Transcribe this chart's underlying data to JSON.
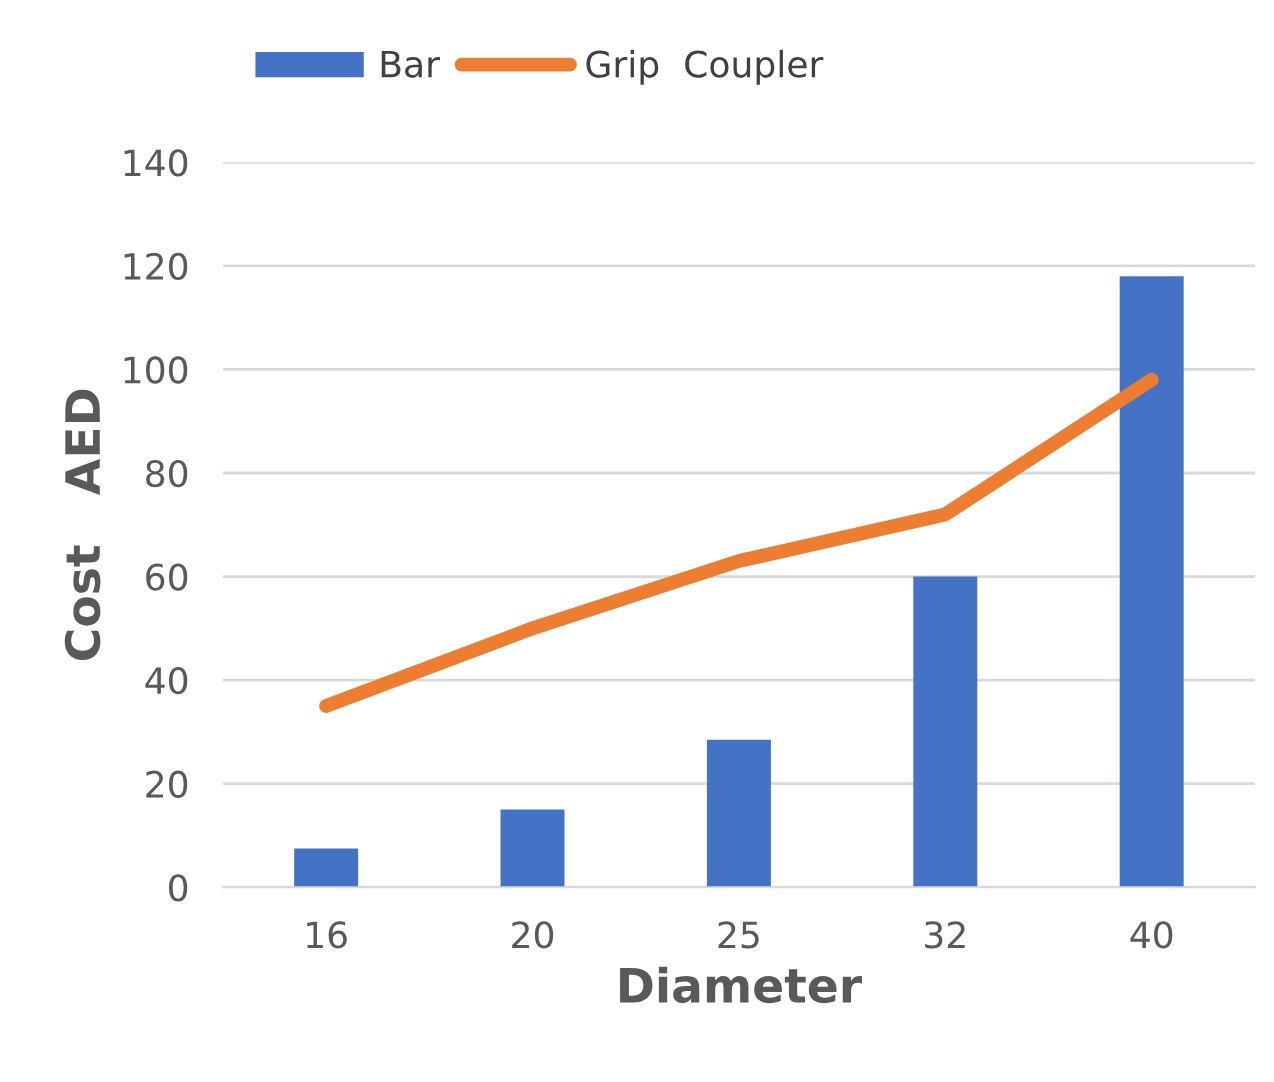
{
  "chart_data": {
    "type": "bar",
    "xlabel": "Diameter",
    "ylabel": "Cost   AED",
    "categories": [
      "16",
      "20",
      "25",
      "32",
      "40"
    ],
    "series": [
      {
        "name": "Bar",
        "color": "#4472c4",
        "values": [
          7.5,
          15,
          28.5,
          60,
          118
        ]
      },
      {
        "name": "Grip  Coupler",
        "type": "line",
        "color": "#ed7d31",
        "values": [
          35,
          50,
          63,
          72,
          98
        ]
      }
    ],
    "ylim": [
      0,
      140
    ],
    "yticks": [
      0,
      20,
      40,
      60,
      80,
      100,
      120,
      140
    ],
    "grid": "y",
    "legend": "top left",
    "marker": "none",
    "line_style": "solid"
  }
}
